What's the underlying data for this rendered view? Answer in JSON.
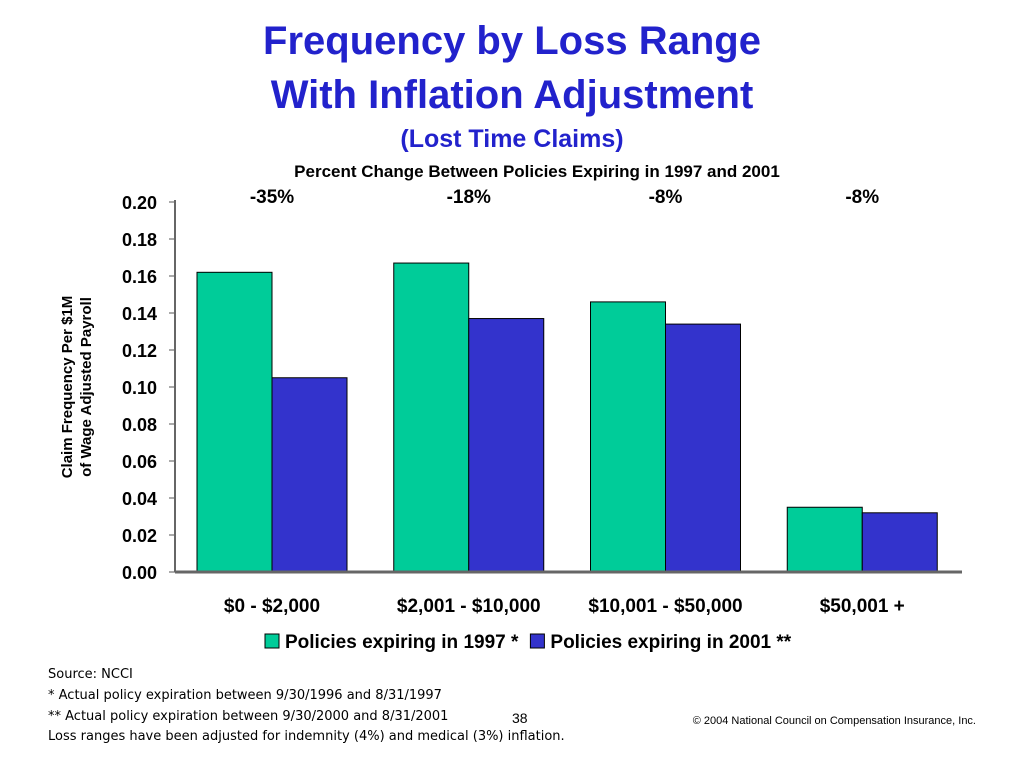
{
  "slide": {
    "title_line1": "Frequency by Loss Range",
    "title_line2": "With Inflation Adjustment",
    "title_line3": "(Lost Time Claims)",
    "page_number": "38",
    "copyright": "© 2004 National Council on Compensation Insurance, Inc."
  },
  "footnotes": [
    "Source: NCCI",
    "*   Actual policy expiration between 9/30/1996 and 8/31/1997",
    "** Actual policy expiration between 9/30/2000 and 8/31/2001",
    "Loss ranges have been adjusted for indemnity (4%) and medical (3%) inflation."
  ],
  "chart_data": {
    "type": "bar",
    "subtitle": "Percent Change Between Policies Expiring in 1997 and 2001",
    "ylabel_line1": "Claim Frequency Per $1M",
    "ylabel_line2": "of Wage Adjusted Payroll",
    "categories": [
      "$0 - $2,000",
      "$2,001 - $10,000",
      "$10,001 - $50,000",
      "$50,001 +"
    ],
    "percent_changes": [
      "-35%",
      "-18%",
      "-8%",
      "-8%"
    ],
    "series": [
      {
        "name": "Policies expiring in 1997 *",
        "values": [
          0.162,
          0.167,
          0.146,
          0.035
        ],
        "color": "#00cc99"
      },
      {
        "name": "Policies expiring in 2001 **",
        "values": [
          0.105,
          0.137,
          0.134,
          0.032
        ],
        "color": "#3333cc"
      }
    ],
    "ylim": [
      0,
      0.2
    ],
    "yticks": [
      "0.00",
      "0.02",
      "0.04",
      "0.06",
      "0.08",
      "0.10",
      "0.12",
      "0.14",
      "0.16",
      "0.18",
      "0.20"
    ],
    "grid": false,
    "legend_position": "bottom"
  }
}
